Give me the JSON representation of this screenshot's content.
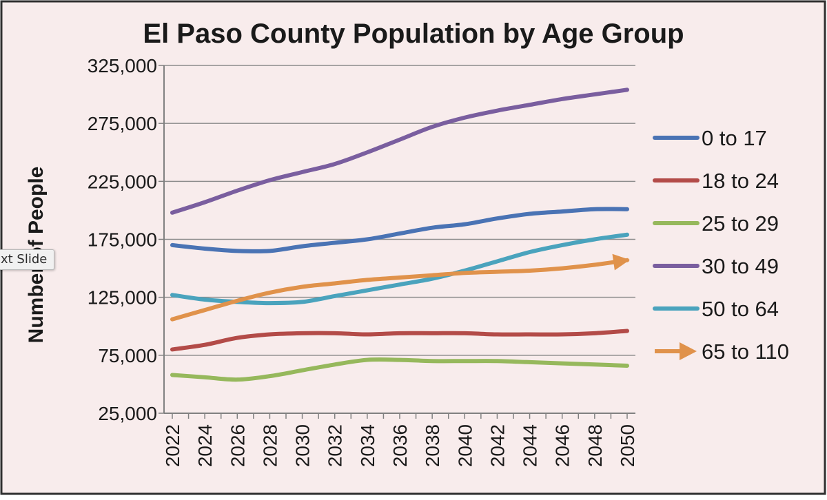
{
  "chart_data": {
    "type": "line",
    "title": "El Paso County Population by Age Group",
    "ylabel": "Number of People",
    "xlabel": "",
    "ylim": [
      25000,
      325000
    ],
    "yticks": [
      "325,000",
      "275,000",
      "225,000",
      "175,000",
      "125,000",
      "75,000",
      "25,000"
    ],
    "ytick_values": [
      325000,
      275000,
      225000,
      175000,
      125000,
      75000,
      25000
    ],
    "xlim": [
      2022,
      2050
    ],
    "xticks": [
      "2022",
      "2024",
      "2026",
      "2028",
      "2030",
      "2032",
      "2034",
      "2036",
      "2038",
      "2040",
      "2042",
      "2044",
      "2046",
      "2048",
      "2050"
    ],
    "grid": "horizontal",
    "legend_position": "right",
    "x": [
      2022,
      2024,
      2026,
      2028,
      2030,
      2032,
      2034,
      2036,
      2038,
      2040,
      2042,
      2044,
      2046,
      2048,
      2050
    ],
    "series": [
      {
        "name": "0 to 17",
        "color": "#4a73b4",
        "marker": "line",
        "values": [
          170000,
          167000,
          165000,
          165000,
          169000,
          172000,
          175000,
          180000,
          185000,
          188000,
          193000,
          197000,
          199000,
          201000,
          201000
        ]
      },
      {
        "name": "18 to 24",
        "color": "#b34b48",
        "marker": "line",
        "values": [
          80000,
          84000,
          90000,
          93000,
          94000,
          94000,
          93000,
          94000,
          94000,
          94000,
          93000,
          93000,
          93000,
          94000,
          96000
        ]
      },
      {
        "name": "25 to 29",
        "color": "#96b85c",
        "marker": "line",
        "values": [
          58000,
          56000,
          54000,
          57000,
          62000,
          67000,
          71000,
          71000,
          70000,
          70000,
          70000,
          69000,
          68000,
          67000,
          66000
        ]
      },
      {
        "name": "30 to 49",
        "color": "#7a5e9f",
        "marker": "line",
        "values": [
          198000,
          207000,
          217000,
          226000,
          233000,
          240000,
          250000,
          261000,
          272000,
          280000,
          286000,
          291000,
          296000,
          300000,
          304000
        ]
      },
      {
        "name": "50 to 64",
        "color": "#4aa3bd",
        "marker": "line",
        "values": [
          127000,
          123000,
          121000,
          120000,
          121000,
          126000,
          131000,
          136000,
          141000,
          148000,
          156000,
          164000,
          170000,
          175000,
          179000
        ]
      },
      {
        "name": "65 to 110",
        "color": "#e0924b",
        "marker": "arrow",
        "values": [
          106000,
          114000,
          122000,
          129000,
          134000,
          137000,
          140000,
          142000,
          144000,
          146000,
          147000,
          148000,
          150000,
          153000,
          157000
        ]
      }
    ]
  },
  "overlay": {
    "tooltip_text": "xt Slide"
  },
  "colors": {
    "frame": "#2e2e2e",
    "plot_background": "#f8ecec",
    "gridline": "#8c8c8c",
    "axis": "#808080",
    "text": "#1a1a1a"
  }
}
